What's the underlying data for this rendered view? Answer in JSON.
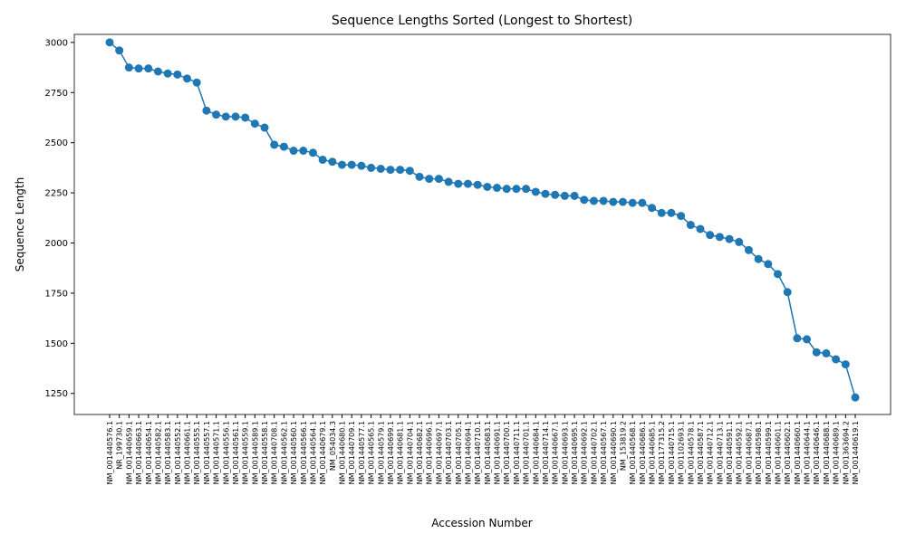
{
  "chart_data": {
    "type": "line",
    "title": "Sequence Lengths Sorted (Longest to Shortest)",
    "x_label": "Accession Number",
    "y_label": "Sequence Length",
    "categories": [
      "NM_001440576.1",
      "NR_199730.1",
      "NM_001440659.1",
      "NM_001440663.1",
      "NM_001440654.1",
      "NM_001440582.1",
      "NM_001440583.1",
      "NM_001440552.1",
      "NM_001440661.1",
      "NM_001440555.1",
      "NM_001440557.1",
      "NM_001440571.1",
      "NM_001440556.1",
      "NM_001440561.1",
      "NM_001440559.1",
      "NM_001440589.1",
      "NM_001440558.1",
      "NM_001440708.1",
      "NM_001440562.1",
      "NM_001440560.1",
      "NM_001440566.1",
      "NM_001440564.1",
      "NM_001440679.1",
      "NM_054034.3",
      "NM_001440680.1",
      "NM_001440709.1",
      "NM_001440577.1",
      "NM_001440565.1",
      "NM_001440579.1",
      "NM_001440699.1",
      "NM_001440681.1",
      "NM_001440704.1",
      "NM_001440682.1",
      "NM_001440696.1",
      "NM_001440697.1",
      "NM_001440703.1",
      "NM_001440705.1",
      "NM_001440694.1",
      "NM_001440710.1",
      "NM_001440683.1",
      "NM_001440691.1",
      "NM_001440700.1",
      "NM_001440711.1",
      "NM_001440701.1",
      "NM_001440684.1",
      "NM_001440714.1",
      "NM_001440667.1",
      "NM_001440693.1",
      "NM_001440695.1",
      "NM_001440692.1",
      "NM_001440702.1",
      "NM_001440567.1",
      "NM_001440690.1",
      "NM_153819.2",
      "NM_001440568.1",
      "NM_001440686.1",
      "NM_001440685.1",
      "NM_001177315.2",
      "NM_001440715.1",
      "NM_001102693.1",
      "NM_001440578.1",
      "NM_001440587.1",
      "NM_001440712.1",
      "NM_001440713.1",
      "NM_001440591.1",
      "NM_001440592.1",
      "NM_001440687.1",
      "NM_001440598.1",
      "NM_001440599.1",
      "NM_001440601.1",
      "NM_001440602.1",
      "NM_001440660.1",
      "NM_001440644.1",
      "NM_001440646.1",
      "NM_001440688.1",
      "NM_001440689.1",
      "NM_001363694.2",
      "NM_001440619.1"
    ],
    "series": [
      {
        "name": "Sequence Length",
        "color": "#1f77b4",
        "values": [
          3000,
          2960,
          2875,
          2870,
          2870,
          2855,
          2845,
          2840,
          2820,
          2800,
          2660,
          2640,
          2630,
          2630,
          2625,
          2595,
          2575,
          2490,
          2480,
          2460,
          2460,
          2450,
          2415,
          2405,
          2390,
          2390,
          2385,
          2375,
          2370,
          2365,
          2365,
          2360,
          2330,
          2320,
          2320,
          2305,
          2295,
          2295,
          2290,
          2280,
          2275,
          2270,
          2270,
          2270,
          2255,
          2245,
          2240,
          2235,
          2235,
          2215,
          2210,
          2210,
          2205,
          2205,
          2200,
          2200,
          2175,
          2150,
          2150,
          2135,
          2090,
          2070,
          2040,
          2030,
          2020,
          2005,
          1965,
          1920,
          1895,
          1845,
          1755,
          1525,
          1520,
          1455,
          1450,
          1420,
          1395,
          1230
        ]
      }
    ],
    "ylim": [
      1145,
      3040
    ],
    "yticks": [
      1250,
      1500,
      1750,
      2000,
      2250,
      2500,
      2750,
      3000
    ]
  }
}
